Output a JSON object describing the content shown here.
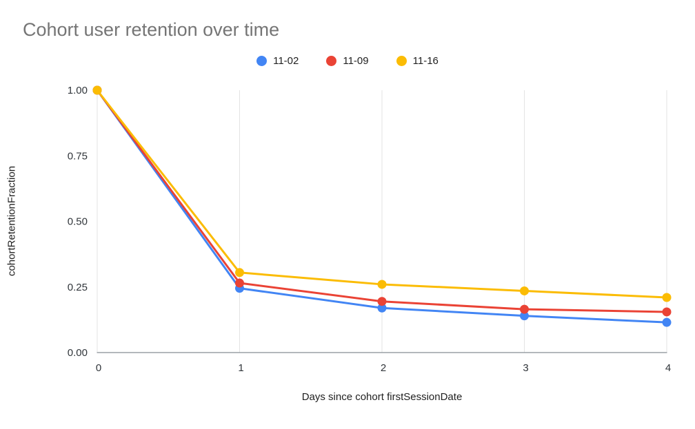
{
  "title": "Cohort user retention over time",
  "axes": {
    "y_title": "cohortRetentionFraction",
    "x_title": "Days since cohort firstSessionDate"
  },
  "chart_data": {
    "type": "line",
    "title": "Cohort user retention over time",
    "xlabel": "Days since cohort firstSessionDate",
    "ylabel": "cohortRetentionFraction",
    "x": [
      0,
      1,
      2,
      3,
      4
    ],
    "x_tick_labels": [
      "0",
      "1",
      "2",
      "3",
      "4"
    ],
    "xlim": [
      0,
      4
    ],
    "y_ticks": [
      0,
      0.25,
      0.5,
      0.75,
      1
    ],
    "y_tick_labels": [
      "0.00",
      "0.25",
      "0.50",
      "0.75",
      "1.00"
    ],
    "ylim": [
      0,
      1
    ],
    "grid": "vertical-only",
    "legend_position": "top-center",
    "series": [
      {
        "name": "11-02",
        "color": "#4285F4",
        "values": [
          1.0,
          0.245,
          0.17,
          0.14,
          0.115
        ]
      },
      {
        "name": "11-09",
        "color": "#EA4335",
        "values": [
          1.0,
          0.265,
          0.195,
          0.165,
          0.155
        ]
      },
      {
        "name": "11-16",
        "color": "#FBBC04",
        "values": [
          1.0,
          0.305,
          0.26,
          0.235,
          0.21
        ]
      }
    ]
  }
}
